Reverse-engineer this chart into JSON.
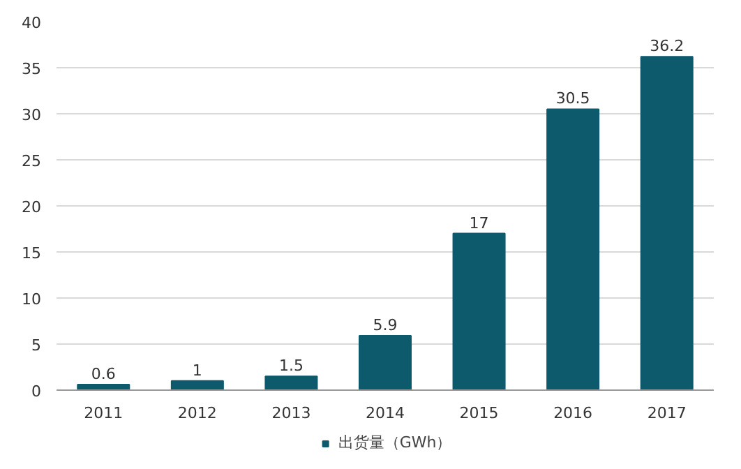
{
  "chart_data": {
    "type": "bar",
    "categories": [
      "2011",
      "2012",
      "2013",
      "2014",
      "2015",
      "2016",
      "2017"
    ],
    "series": [
      {
        "name": "出货量（GWh）",
        "color": "#0d5a6c",
        "values": [
          0.6,
          1,
          1.5,
          5.9,
          17,
          30.5,
          36.2
        ]
      }
    ],
    "ylim": [
      0,
      40
    ],
    "yticks": [
      0,
      5,
      10,
      15,
      20,
      25,
      30,
      35,
      40
    ],
    "grid": "y",
    "legend": "bottom",
    "data_labels": true
  }
}
